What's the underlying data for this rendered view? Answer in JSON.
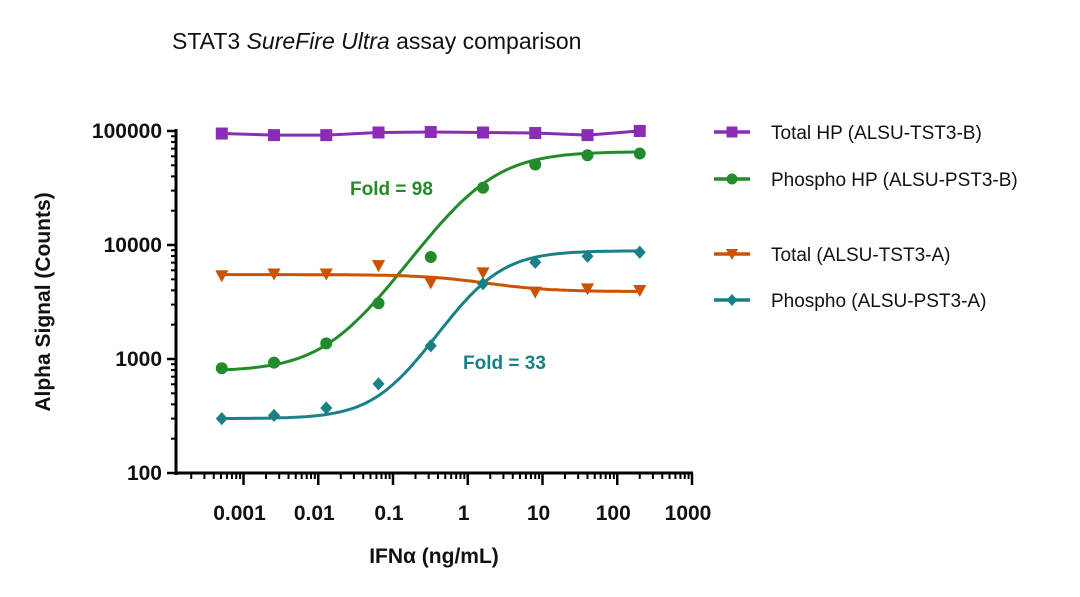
{
  "chart_data": {
    "type": "line",
    "title": [
      "STAT3 ",
      "SureFire Ultra",
      " assay comparison"
    ],
    "xlabel": "IFNα (ng/mL)",
    "ylabel": "Alpha Signal (Counts)",
    "xscale": "log",
    "yscale": "log",
    "xlim": [
      0.000125,
      1000
    ],
    "ylim": [
      100,
      100000
    ],
    "xticks": [
      "0.001",
      "0.01",
      "0.1",
      "1",
      "10",
      "100",
      "1000"
    ],
    "yticks": [
      "100",
      "1000",
      "10000",
      "100000"
    ],
    "grid": false,
    "legend_position": "right",
    "x": [
      0.000512,
      0.00256,
      0.0128,
      0.064,
      0.32,
      1.6,
      8,
      40,
      200
    ],
    "series": [
      {
        "name": "Total HP (ALSU-TST3-B)",
        "color": "#8b2cb5",
        "marker": "square",
        "values": [
          95000,
          92000,
          92000,
          97000,
          98000,
          97000,
          96000,
          92000,
          100000
        ]
      },
      {
        "name": "Phospho HP (ALSU-PST3-B)",
        "color": "#238b2b",
        "marker": "circle",
        "values": [
          830,
          930,
          1370,
          3080,
          7850,
          31800,
          50800,
          61200,
          63400
        ]
      },
      {
        "name": "Total (ALSU-TST3-A)",
        "color": "#cc5200",
        "marker": "triangle-down",
        "values": [
          5390,
          5580,
          5580,
          6610,
          4660,
          5700,
          3870,
          4130,
          4000
        ]
      },
      {
        "name": "Phospho (ALSU-PST3-A)",
        "color": "#1a8088",
        "marker": "diamond",
        "values": [
          300,
          320,
          372,
          605,
          1306,
          4570,
          7050,
          7960,
          8640
        ]
      }
    ],
    "annotations": [
      {
        "text": "Fold = 98",
        "color": "#238b2b"
      },
      {
        "text": "Fold = 33",
        "color": "#1a8088"
      }
    ]
  }
}
